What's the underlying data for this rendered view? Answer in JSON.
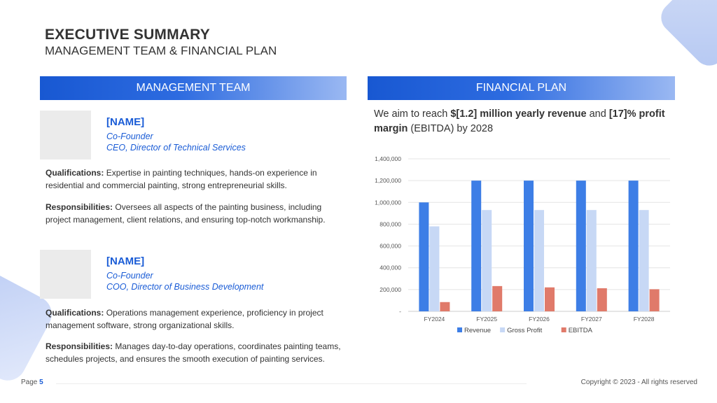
{
  "header": {
    "title": "EXECUTIVE SUMMARY",
    "subtitle": "MANAGEMENT TEAM & FINANCIAL PLAN"
  },
  "management": {
    "heading": "MANAGEMENT TEAM",
    "members": [
      {
        "name": "[NAME]",
        "role_line1": "Co-Founder",
        "role_line2": "CEO, Director of Technical Services",
        "qualifications_label": "Qualifications:",
        "qualifications": "Expertise in painting techniques, hands-on experience in residential and commercial painting, strong entrepreneurial skills.",
        "responsibilities_label": "Responsibilities:",
        "responsibilities": "Oversees all aspects of the painting business, including project management, client relations, and ensuring top-notch workmanship."
      },
      {
        "name": "[NAME]",
        "role_line1": "Co-Founder",
        "role_line2": "COO, Director of Business Development",
        "qualifications_label": "Qualifications:",
        "qualifications": "Operations management experience, proficiency in project management software, strong organizational skills.",
        "responsibilities_label": "Responsibilities:",
        "responsibilities": "Manages day-to-day operations, coordinates painting teams, schedules projects, and ensures the smooth execution of painting services."
      }
    ]
  },
  "financial": {
    "heading": "FINANCIAL PLAN",
    "text_1": "We aim to reach ",
    "bold_1": "$[1.2] million yearly revenue",
    "text_2": " and ",
    "bold_2": "[17]% profit margin",
    "text_3": " (EBITDA) by 2028"
  },
  "chart_data": {
    "type": "bar",
    "categories": [
      "FY2024",
      "FY2025",
      "FY2026",
      "FY2027",
      "FY2028"
    ],
    "series": [
      {
        "name": "Revenue",
        "color": "#3d7ee6",
        "values": [
          1000000,
          1200000,
          1200000,
          1200000,
          1200000
        ]
      },
      {
        "name": "Gross Profit",
        "color": "#c7d8f5",
        "values": [
          780000,
          930000,
          930000,
          930000,
          930000
        ]
      },
      {
        "name": "EBITDA",
        "color": "#e07a6a",
        "values": [
          85000,
          232000,
          220000,
          212000,
          203000
        ]
      }
    ],
    "yticks": [
      "-",
      "200,000",
      "400,000",
      "600,000",
      "800,000",
      "1,000,000",
      "1,200,000",
      "1,400,000"
    ],
    "ylim": [
      0,
      1400000
    ],
    "grid": true,
    "legend": "bottom"
  },
  "footer": {
    "page_label": "Page",
    "page_number": "5",
    "copyright": "Copyright © 2023 - All rights reserved"
  }
}
